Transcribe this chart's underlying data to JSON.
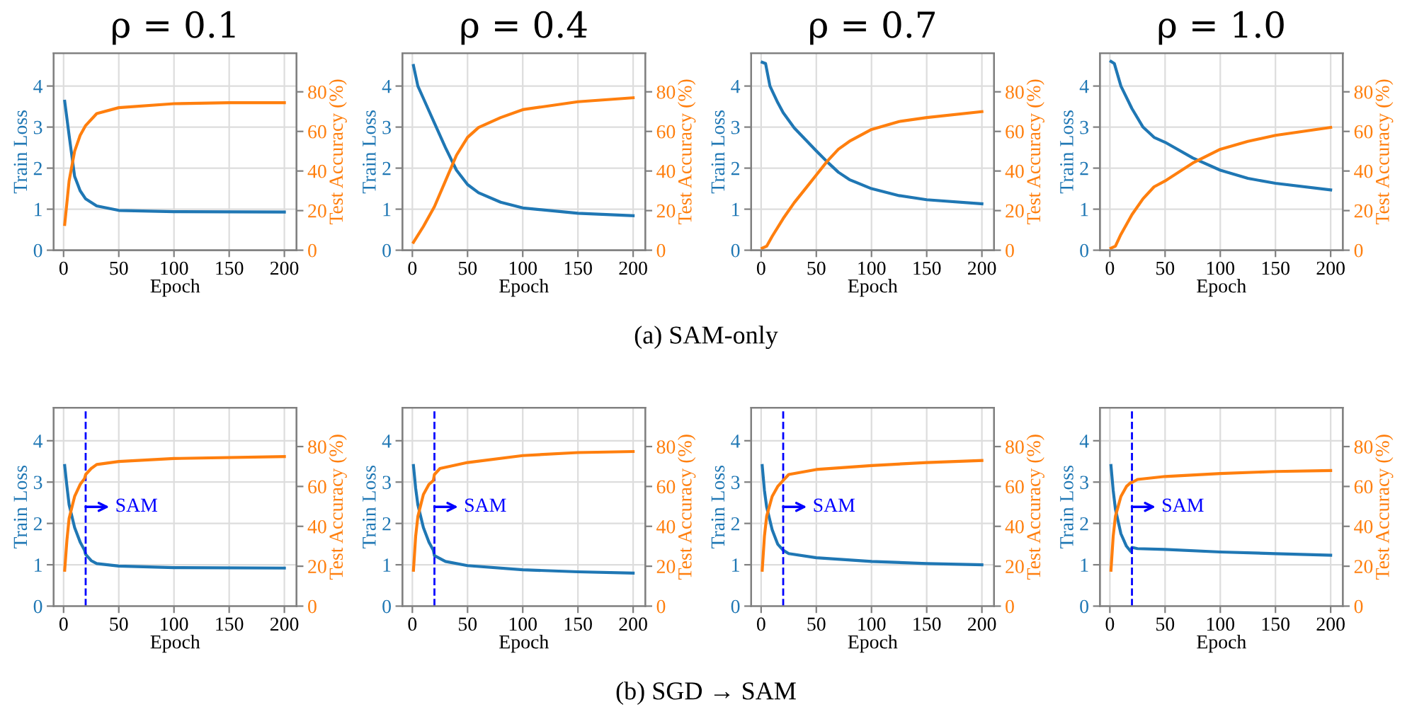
{
  "chart_data": [
    {
      "type": "line",
      "title": "ρ = 0.1",
      "xlabel": "Epoch",
      "ylabel": "Train Loss",
      "y2label": "Test Accuracy (%)",
      "xlim": [
        -9,
        211
      ],
      "ylim": [
        0,
        4.8
      ],
      "y2lim": [
        0,
        99.5
      ],
      "xticks": [
        0,
        50,
        100,
        150,
        200
      ],
      "yticks": [
        0,
        1,
        2,
        3,
        4
      ],
      "y2ticks": [
        0,
        20,
        40,
        60,
        80
      ],
      "grid": true,
      "annotations": [
        "(a) SAM-only"
      ],
      "series": [
        {
          "color": "#1f77b4",
          "x": [
            1,
            5,
            10,
            15,
            20,
            30,
            50,
            100,
            200
          ],
          "values": [
            3.63,
            2.8,
            1.8,
            1.45,
            1.25,
            1.08,
            0.97,
            0.94,
            0.93
          ]
        },
        {
          "color": "#ff7f0e",
          "axis": "y2",
          "x": [
            1,
            5,
            10,
            15,
            20,
            30,
            50,
            100,
            150,
            200
          ],
          "values": [
            13,
            35,
            50,
            58,
            63,
            69,
            72,
            74,
            74.5,
            74.5
          ]
        }
      ]
    },
    {
      "type": "line",
      "title": "ρ = 0.4",
      "xlabel": "Epoch",
      "ylabel": "Train Loss",
      "y2label": "Test Accuracy (%)",
      "xlim": [
        -9,
        211
      ],
      "ylim": [
        0,
        4.8
      ],
      "y2lim": [
        0,
        99.5
      ],
      "xticks": [
        0,
        50,
        100,
        150,
        200
      ],
      "yticks": [
        0,
        1,
        2,
        3,
        4
      ],
      "y2ticks": [
        0,
        20,
        40,
        60,
        80
      ],
      "grid": true,
      "series": [
        {
          "color": "#1f77b4",
          "x": [
            1,
            5,
            10,
            20,
            30,
            40,
            50,
            60,
            80,
            100,
            150,
            200
          ],
          "values": [
            4.5,
            4.0,
            3.7,
            3.1,
            2.5,
            1.95,
            1.6,
            1.4,
            1.17,
            1.03,
            0.9,
            0.84
          ]
        },
        {
          "color": "#ff7f0e",
          "axis": "y2",
          "x": [
            1,
            10,
            20,
            30,
            40,
            50,
            60,
            80,
            100,
            150,
            200
          ],
          "values": [
            4,
            12,
            22,
            35,
            48,
            57,
            62,
            67,
            71,
            75,
            77
          ]
        }
      ]
    },
    {
      "type": "line",
      "title": "ρ = 0.7",
      "xlabel": "Epoch",
      "ylabel": "Train Loss",
      "y2label": "Test Accuracy (%)",
      "xlim": [
        -9,
        211
      ],
      "ylim": [
        0,
        4.8
      ],
      "y2lim": [
        0,
        99.5
      ],
      "xticks": [
        0,
        50,
        100,
        150,
        200
      ],
      "yticks": [
        0,
        1,
        2,
        3,
        4
      ],
      "y2ticks": [
        0,
        20,
        40,
        60,
        80
      ],
      "grid": true,
      "series": [
        {
          "color": "#1f77b4",
          "x": [
            1,
            4,
            8,
            15,
            20,
            30,
            40,
            50,
            60,
            70,
            80,
            100,
            125,
            150,
            200
          ],
          "values": [
            4.58,
            4.55,
            4.0,
            3.6,
            3.35,
            2.98,
            2.7,
            2.42,
            2.15,
            1.9,
            1.72,
            1.5,
            1.33,
            1.23,
            1.13
          ]
        },
        {
          "color": "#ff7f0e",
          "axis": "y2",
          "x": [
            1,
            5,
            10,
            20,
            30,
            40,
            50,
            60,
            70,
            80,
            100,
            125,
            150,
            200
          ],
          "values": [
            1,
            2,
            7,
            16,
            24,
            31,
            38,
            45,
            51,
            55,
            61,
            65,
            67,
            70
          ]
        }
      ]
    },
    {
      "type": "line",
      "title": "ρ = 1.0",
      "xlabel": "Epoch",
      "ylabel": "Train Loss",
      "y2label": "Test Accuracy (%)",
      "xlim": [
        -9,
        211
      ],
      "ylim": [
        0,
        4.8
      ],
      "y2lim": [
        0,
        99.5
      ],
      "xticks": [
        0,
        50,
        100,
        150,
        200
      ],
      "yticks": [
        0,
        1,
        2,
        3,
        4
      ],
      "y2ticks": [
        0,
        20,
        40,
        60,
        80
      ],
      "grid": true,
      "series": [
        {
          "color": "#1f77b4",
          "x": [
            1,
            4,
            10,
            20,
            30,
            40,
            50,
            75,
            100,
            125,
            150,
            200
          ],
          "values": [
            4.6,
            4.55,
            4.0,
            3.45,
            3.0,
            2.75,
            2.63,
            2.25,
            1.95,
            1.75,
            1.63,
            1.47
          ]
        },
        {
          "color": "#ff7f0e",
          "axis": "y2",
          "x": [
            1,
            5,
            10,
            20,
            30,
            40,
            50,
            75,
            100,
            125,
            150,
            200
          ],
          "values": [
            1,
            2,
            8,
            18,
            26,
            32,
            35,
            44,
            51,
            55,
            58,
            62
          ]
        }
      ]
    },
    {
      "type": "line",
      "xlabel": "Epoch",
      "ylabel": "Train Loss",
      "y2label": "Test Accuracy (%)",
      "xlim": [
        -9,
        211
      ],
      "ylim": [
        0,
        4.8
      ],
      "y2lim": [
        0,
        99.5
      ],
      "xticks": [
        0,
        50,
        100,
        150,
        200
      ],
      "yticks": [
        0,
        1,
        2,
        3,
        4
      ],
      "y2ticks": [
        0,
        20,
        40,
        60,
        80
      ],
      "grid": true,
      "annotations": [
        "(b) SGD → SAM"
      ],
      "ref_lines": [
        {
          "axis": "x",
          "value": 20,
          "label": "SAM",
          "color": "#0000ff",
          "line_style": "dashed"
        }
      ],
      "series": [
        {
          "color": "#1f77b4",
          "x": [
            1,
            3,
            5,
            10,
            15,
            19,
            20,
            25,
            30,
            50,
            100,
            200
          ],
          "values": [
            3.4,
            2.9,
            2.45,
            1.9,
            1.55,
            1.35,
            1.25,
            1.1,
            1.03,
            0.97,
            0.93,
            0.92
          ]
        },
        {
          "color": "#ff7f0e",
          "axis": "y2",
          "x": [
            1,
            3,
            5,
            10,
            15,
            19,
            20,
            25,
            30,
            50,
            100,
            200
          ],
          "values": [
            18,
            33,
            44,
            55,
            61,
            64,
            66,
            69,
            71,
            72.5,
            74,
            75
          ]
        }
      ]
    },
    {
      "type": "line",
      "xlabel": "Epoch",
      "ylabel": "Train Loss",
      "y2label": "Test Accuracy (%)",
      "xlim": [
        -9,
        211
      ],
      "ylim": [
        0,
        4.8
      ],
      "y2lim": [
        0,
        99.5
      ],
      "xticks": [
        0,
        50,
        100,
        150,
        200
      ],
      "yticks": [
        0,
        1,
        2,
        3,
        4
      ],
      "y2ticks": [
        0,
        20,
        40,
        60,
        80
      ],
      "grid": true,
      "ref_lines": [
        {
          "axis": "x",
          "value": 20,
          "label": "SAM",
          "color": "#0000ff",
          "line_style": "dashed"
        }
      ],
      "series": [
        {
          "color": "#1f77b4",
          "x": [
            1,
            3,
            5,
            10,
            15,
            19,
            20,
            30,
            50,
            100,
            150,
            200
          ],
          "values": [
            3.4,
            2.85,
            2.45,
            1.9,
            1.55,
            1.35,
            1.22,
            1.08,
            0.98,
            0.88,
            0.83,
            0.8
          ]
        },
        {
          "color": "#ff7f0e",
          "axis": "y2",
          "x": [
            1,
            3,
            5,
            10,
            15,
            19,
            20,
            25,
            50,
            100,
            150,
            200
          ],
          "values": [
            18,
            35,
            45,
            56,
            61,
            63,
            66,
            69,
            72,
            75.5,
            77,
            77.5
          ]
        }
      ]
    },
    {
      "type": "line",
      "xlabel": "Epoch",
      "ylabel": "Train Loss",
      "y2label": "Test Accuracy (%)",
      "xlim": [
        -9,
        211
      ],
      "ylim": [
        0,
        4.8
      ],
      "y2lim": [
        0,
        99.5
      ],
      "xticks": [
        0,
        50,
        100,
        150,
        200
      ],
      "yticks": [
        0,
        1,
        2,
        3,
        4
      ],
      "y2ticks": [
        0,
        20,
        40,
        60,
        80
      ],
      "grid": true,
      "ref_lines": [
        {
          "axis": "x",
          "value": 20,
          "label": "SAM",
          "color": "#0000ff",
          "line_style": "dashed"
        }
      ],
      "series": [
        {
          "color": "#1f77b4",
          "x": [
            1,
            3,
            5,
            10,
            15,
            20,
            25,
            50,
            100,
            150,
            200
          ],
          "values": [
            3.4,
            2.8,
            2.4,
            1.85,
            1.5,
            1.35,
            1.27,
            1.17,
            1.08,
            1.03,
            1.0
          ]
        },
        {
          "color": "#ff7f0e",
          "axis": "y2",
          "x": [
            1,
            3,
            5,
            10,
            15,
            20,
            25,
            50,
            100,
            150,
            200
          ],
          "values": [
            18,
            35,
            45,
            55,
            60,
            63,
            66,
            68.5,
            70.5,
            72,
            73
          ]
        }
      ]
    },
    {
      "type": "line",
      "xlabel": "Epoch",
      "ylabel": "Train Loss",
      "y2label": "Test Accuracy (%)",
      "xlim": [
        -9,
        211
      ],
      "ylim": [
        0,
        4.8
      ],
      "y2lim": [
        0,
        99.5
      ],
      "xticks": [
        0,
        50,
        100,
        150,
        200
      ],
      "yticks": [
        0,
        1,
        2,
        3,
        4
      ],
      "y2ticks": [
        0,
        20,
        40,
        60,
        80
      ],
      "grid": true,
      "ref_lines": [
        {
          "axis": "x",
          "value": 20,
          "label": "SAM",
          "color": "#0000ff",
          "line_style": "dashed"
        }
      ],
      "series": [
        {
          "color": "#1f77b4",
          "x": [
            1,
            3,
            5,
            10,
            15,
            19,
            20,
            25,
            50,
            100,
            150,
            200
          ],
          "values": [
            3.4,
            2.8,
            2.35,
            1.75,
            1.45,
            1.32,
            1.42,
            1.39,
            1.37,
            1.31,
            1.27,
            1.23
          ]
        },
        {
          "color": "#ff7f0e",
          "axis": "y2",
          "x": [
            1,
            3,
            5,
            10,
            15,
            19,
            20,
            25,
            50,
            100,
            150,
            200
          ],
          "values": [
            18,
            35,
            45,
            55,
            60,
            62,
            62,
            63.5,
            65,
            66.5,
            67.5,
            68
          ]
        }
      ]
    }
  ]
}
